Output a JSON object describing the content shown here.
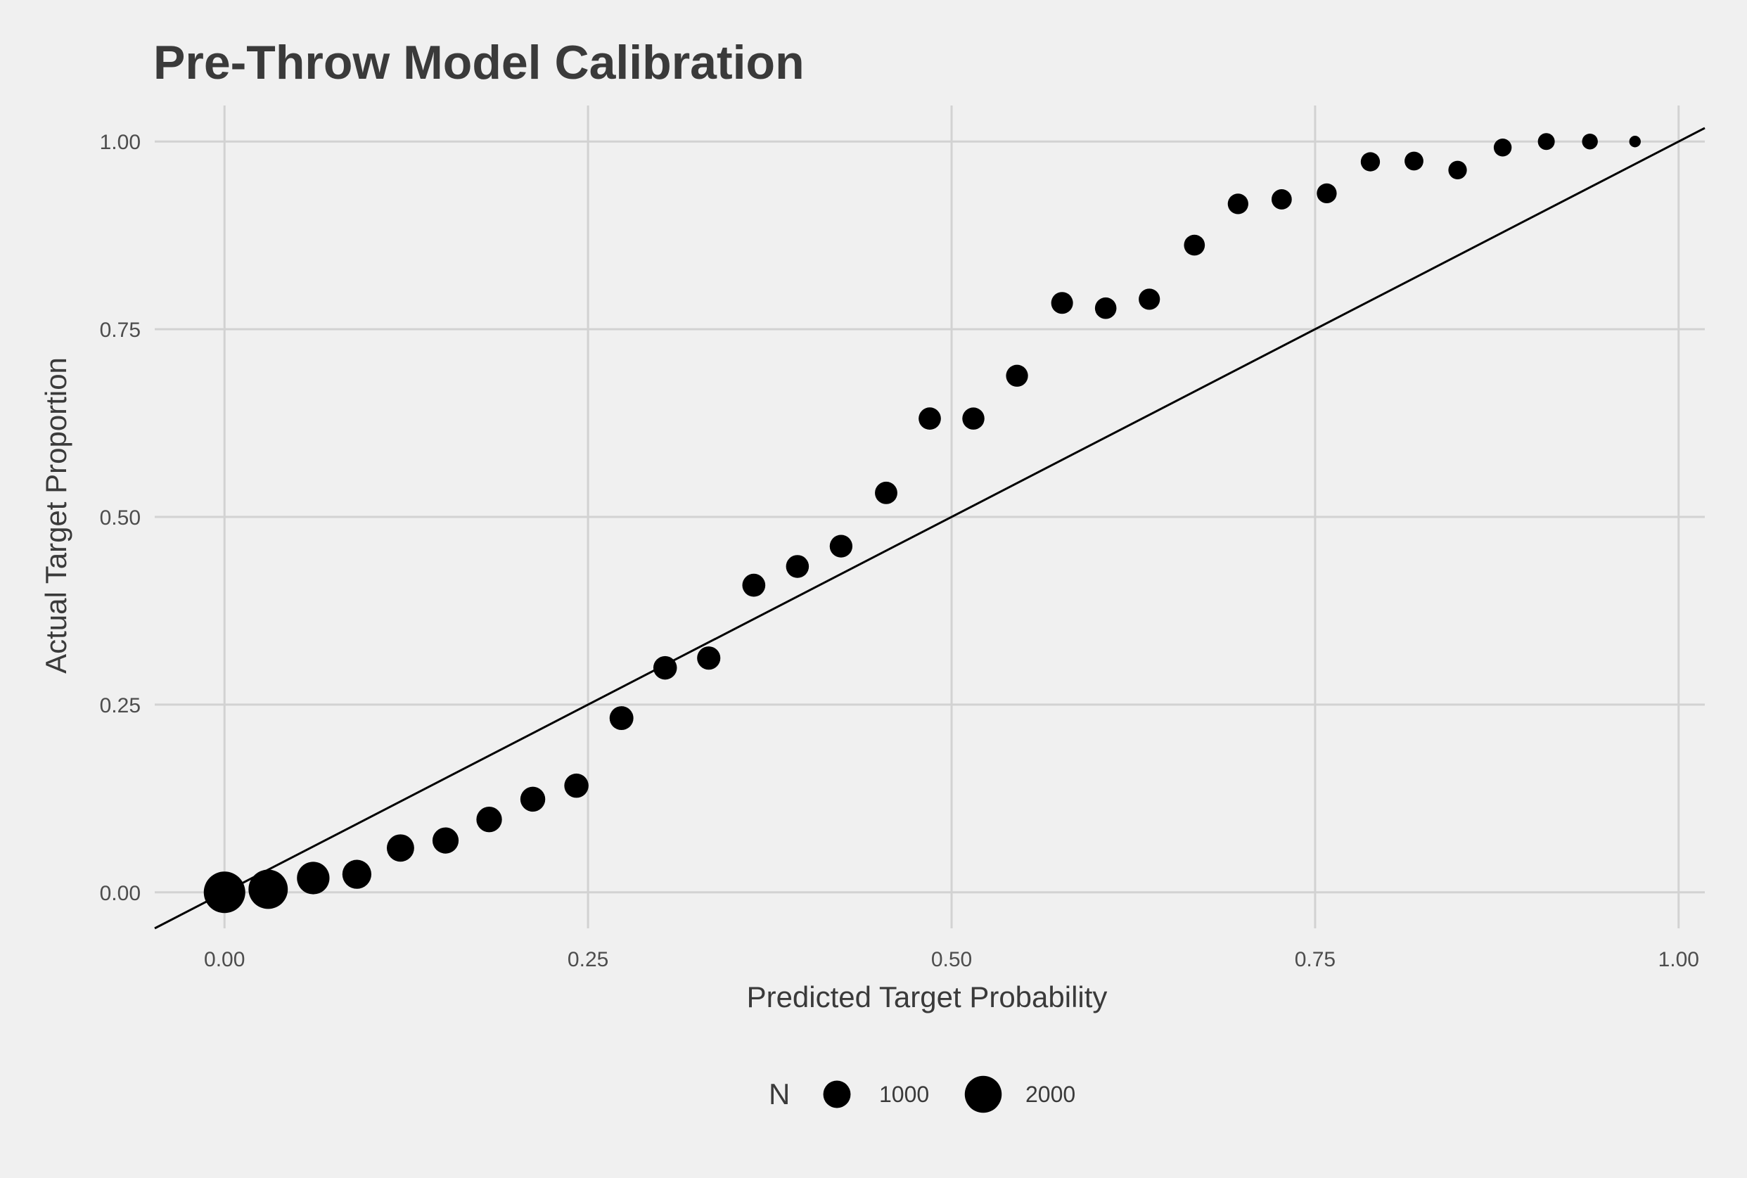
{
  "chart_data": {
    "type": "scatter",
    "title": "Pre-Throw Model Calibration",
    "xlabel": "Predicted Target Probability",
    "ylabel": "Actual Target Proportion",
    "xlim": [
      -0.048,
      1.018
    ],
    "ylim": [
      -0.048,
      1.048
    ],
    "x_ticks": [
      0.0,
      0.25,
      0.5,
      0.75,
      1.0
    ],
    "y_ticks": [
      0.0,
      0.25,
      0.5,
      0.75,
      1.0
    ],
    "x_tick_labels": [
      "0.00",
      "0.25",
      "0.50",
      "0.75",
      "1.00"
    ],
    "y_tick_labels": [
      "0.00",
      "0.25",
      "0.50",
      "0.75",
      "1.00"
    ],
    "grid": true,
    "reference_line": {
      "slope": 1,
      "intercept": 0
    },
    "legend": {
      "position": "bottom",
      "title": "N",
      "entries": [
        {
          "label": "1000",
          "n": 1000
        },
        {
          "label": "2000",
          "n": 2000
        }
      ]
    },
    "points": [
      {
        "x": 0.0,
        "y": 0.0,
        "n": 2600
      },
      {
        "x": 0.03,
        "y": 0.004,
        "n": 2300
      },
      {
        "x": 0.061,
        "y": 0.019,
        "n": 1500
      },
      {
        "x": 0.091,
        "y": 0.024,
        "n": 1150
      },
      {
        "x": 0.121,
        "y": 0.059,
        "n": 1000
      },
      {
        "x": 0.152,
        "y": 0.069,
        "n": 900
      },
      {
        "x": 0.182,
        "y": 0.097,
        "n": 850
      },
      {
        "x": 0.212,
        "y": 0.124,
        "n": 800
      },
      {
        "x": 0.242,
        "y": 0.142,
        "n": 750
      },
      {
        "x": 0.273,
        "y": 0.232,
        "n": 720
      },
      {
        "x": 0.303,
        "y": 0.299,
        "n": 700
      },
      {
        "x": 0.333,
        "y": 0.312,
        "n": 680
      },
      {
        "x": 0.364,
        "y": 0.409,
        "n": 660
      },
      {
        "x": 0.394,
        "y": 0.434,
        "n": 650
      },
      {
        "x": 0.424,
        "y": 0.461,
        "n": 640
      },
      {
        "x": 0.455,
        "y": 0.532,
        "n": 620
      },
      {
        "x": 0.485,
        "y": 0.631,
        "n": 610
      },
      {
        "x": 0.515,
        "y": 0.631,
        "n": 600
      },
      {
        "x": 0.545,
        "y": 0.688,
        "n": 590
      },
      {
        "x": 0.576,
        "y": 0.785,
        "n": 580
      },
      {
        "x": 0.606,
        "y": 0.778,
        "n": 560
      },
      {
        "x": 0.636,
        "y": 0.79,
        "n": 540
      },
      {
        "x": 0.667,
        "y": 0.862,
        "n": 520
      },
      {
        "x": 0.697,
        "y": 0.917,
        "n": 500
      },
      {
        "x": 0.727,
        "y": 0.923,
        "n": 480
      },
      {
        "x": 0.758,
        "y": 0.931,
        "n": 460
      },
      {
        "x": 0.788,
        "y": 0.973,
        "n": 420
      },
      {
        "x": 0.818,
        "y": 0.974,
        "n": 400
      },
      {
        "x": 0.848,
        "y": 0.962,
        "n": 380
      },
      {
        "x": 0.879,
        "y": 0.992,
        "n": 350
      },
      {
        "x": 0.909,
        "y": 1.0,
        "n": 300
      },
      {
        "x": 0.939,
        "y": 1.0,
        "n": 250
      },
      {
        "x": 0.97,
        "y": 1.0,
        "n": 100
      }
    ],
    "point_color": "#000000",
    "line_color": "#000000",
    "grid_color": "#d2d2d2",
    "background_color": "#f0f0f0"
  }
}
